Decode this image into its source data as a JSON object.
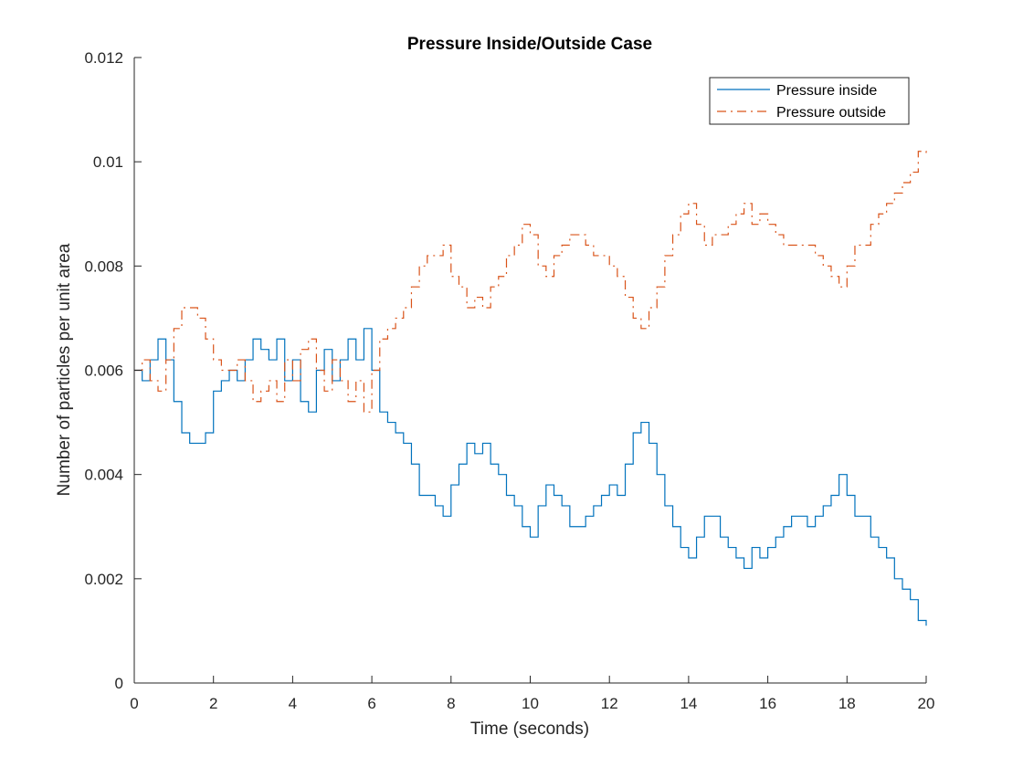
{
  "chart_data": {
    "type": "line",
    "title": "Pressure Inside/Outside Case",
    "xlabel": "Time (seconds)",
    "ylabel": "Number of particles per unit area",
    "xlim": [
      0,
      20
    ],
    "ylim": [
      0,
      0.012
    ],
    "x_ticks": [
      0,
      2,
      4,
      6,
      8,
      10,
      12,
      14,
      16,
      18,
      20
    ],
    "y_ticks": [
      0,
      0.002,
      0.004,
      0.006,
      0.008,
      0.01,
      0.012
    ],
    "x_tick_labels": [
      "0",
      "2",
      "4",
      "6",
      "8",
      "10",
      "12",
      "14",
      "16",
      "18",
      "20"
    ],
    "y_tick_labels": [
      "0",
      "0.002",
      "0.004",
      "0.006",
      "0.008",
      "0.01",
      "0.012"
    ],
    "grid": false,
    "legend_position": "top-right",
    "series": [
      {
        "name": "Pressure inside",
        "color": "#0072BD",
        "style": "solid",
        "x": [
          0,
          0.2,
          0.4,
          0.6,
          0.8,
          1.0,
          1.2,
          1.4,
          1.6,
          1.8,
          2.0,
          2.2,
          2.4,
          2.6,
          2.8,
          3.0,
          3.2,
          3.4,
          3.6,
          3.8,
          4.0,
          4.2,
          4.4,
          4.6,
          4.8,
          5.0,
          5.2,
          5.4,
          5.6,
          5.8,
          6.0,
          6.2,
          6.4,
          6.6,
          6.8,
          7.0,
          7.2,
          7.4,
          7.6,
          7.8,
          8.0,
          8.2,
          8.4,
          8.6,
          8.8,
          9.0,
          9.2,
          9.4,
          9.6,
          9.8,
          10.0,
          10.2,
          10.4,
          10.6,
          10.8,
          11.0,
          11.2,
          11.4,
          11.6,
          11.8,
          12.0,
          12.2,
          12.4,
          12.6,
          12.8,
          13.0,
          13.2,
          13.4,
          13.6,
          13.8,
          14.0,
          14.2,
          14.4,
          14.6,
          14.8,
          15.0,
          15.2,
          15.4,
          15.6,
          15.8,
          16.0,
          16.2,
          16.4,
          16.6,
          16.8,
          17.0,
          17.2,
          17.4,
          17.6,
          17.8,
          18.0,
          18.2,
          18.4,
          18.6,
          18.8,
          19.0,
          19.2,
          19.4,
          19.6,
          19.8,
          20.0
        ],
        "values": [
          0.006,
          0.0058,
          0.0062,
          0.0066,
          0.0062,
          0.0054,
          0.0048,
          0.0046,
          0.0046,
          0.0048,
          0.0056,
          0.0058,
          0.006,
          0.0058,
          0.0062,
          0.0066,
          0.0064,
          0.0062,
          0.0066,
          0.0058,
          0.0062,
          0.0054,
          0.0052,
          0.006,
          0.0064,
          0.0058,
          0.0062,
          0.0066,
          0.0062,
          0.0068,
          0.006,
          0.0052,
          0.005,
          0.0048,
          0.0046,
          0.0042,
          0.0036,
          0.0036,
          0.0034,
          0.0032,
          0.0038,
          0.0042,
          0.0046,
          0.0044,
          0.0046,
          0.0042,
          0.004,
          0.0036,
          0.0034,
          0.003,
          0.0028,
          0.0034,
          0.0038,
          0.0036,
          0.0034,
          0.003,
          0.003,
          0.0032,
          0.0034,
          0.0036,
          0.0038,
          0.0036,
          0.0042,
          0.0048,
          0.005,
          0.0046,
          0.004,
          0.0034,
          0.003,
          0.0026,
          0.0024,
          0.0028,
          0.0032,
          0.0032,
          0.0028,
          0.0026,
          0.0024,
          0.0022,
          0.0026,
          0.0024,
          0.0026,
          0.0028,
          0.003,
          0.0032,
          0.0032,
          0.003,
          0.0032,
          0.0034,
          0.0036,
          0.004,
          0.0036,
          0.0032,
          0.0032,
          0.0028,
          0.0026,
          0.0024,
          0.002,
          0.0018,
          0.0016,
          0.0012,
          0.0011
        ]
      },
      {
        "name": "Pressure outside",
        "color": "#D95319",
        "style": "dash-dot",
        "x": [
          0,
          0.2,
          0.4,
          0.6,
          0.8,
          1.0,
          1.2,
          1.4,
          1.6,
          1.8,
          2.0,
          2.2,
          2.4,
          2.6,
          2.8,
          3.0,
          3.2,
          3.4,
          3.6,
          3.8,
          4.0,
          4.2,
          4.4,
          4.6,
          4.8,
          5.0,
          5.2,
          5.4,
          5.6,
          5.8,
          6.0,
          6.2,
          6.4,
          6.6,
          6.8,
          7.0,
          7.2,
          7.4,
          7.6,
          7.8,
          8.0,
          8.2,
          8.4,
          8.6,
          8.8,
          9.0,
          9.2,
          9.4,
          9.6,
          9.8,
          10.0,
          10.2,
          10.4,
          10.6,
          10.8,
          11.0,
          11.2,
          11.4,
          11.6,
          11.8,
          12.0,
          12.2,
          12.4,
          12.6,
          12.8,
          13.0,
          13.2,
          13.4,
          13.6,
          13.8,
          14.0,
          14.2,
          14.4,
          14.6,
          14.8,
          15.0,
          15.2,
          15.4,
          15.6,
          15.8,
          16.0,
          16.2,
          16.4,
          16.6,
          16.8,
          17.0,
          17.2,
          17.4,
          17.6,
          17.8,
          18.0,
          18.2,
          18.4,
          18.6,
          18.8,
          19.0,
          19.2,
          19.4,
          19.6,
          19.8,
          20.0
        ],
        "values": [
          0.006,
          0.0062,
          0.0058,
          0.0056,
          0.0062,
          0.0068,
          0.0072,
          0.0072,
          0.007,
          0.0066,
          0.0062,
          0.006,
          0.006,
          0.0062,
          0.0058,
          0.0054,
          0.0056,
          0.0058,
          0.0054,
          0.0062,
          0.0058,
          0.0064,
          0.0066,
          0.006,
          0.0056,
          0.0062,
          0.0058,
          0.0054,
          0.0058,
          0.0052,
          0.006,
          0.0066,
          0.0068,
          0.007,
          0.0072,
          0.0076,
          0.008,
          0.0082,
          0.0082,
          0.0084,
          0.0078,
          0.0076,
          0.0072,
          0.0074,
          0.0072,
          0.0076,
          0.0078,
          0.0082,
          0.0084,
          0.0088,
          0.0086,
          0.008,
          0.0078,
          0.0082,
          0.0084,
          0.0086,
          0.0086,
          0.0084,
          0.0082,
          0.0082,
          0.008,
          0.0078,
          0.0074,
          0.007,
          0.0068,
          0.0072,
          0.0076,
          0.0082,
          0.0086,
          0.009,
          0.0092,
          0.0088,
          0.0084,
          0.0086,
          0.0086,
          0.0088,
          0.009,
          0.0092,
          0.0088,
          0.009,
          0.0088,
          0.0086,
          0.0084,
          0.0084,
          0.0084,
          0.0084,
          0.0082,
          0.008,
          0.0078,
          0.0076,
          0.008,
          0.0084,
          0.0084,
          0.0088,
          0.009,
          0.0092,
          0.0094,
          0.0096,
          0.0098,
          0.0102,
          0.0101
        ]
      }
    ]
  }
}
